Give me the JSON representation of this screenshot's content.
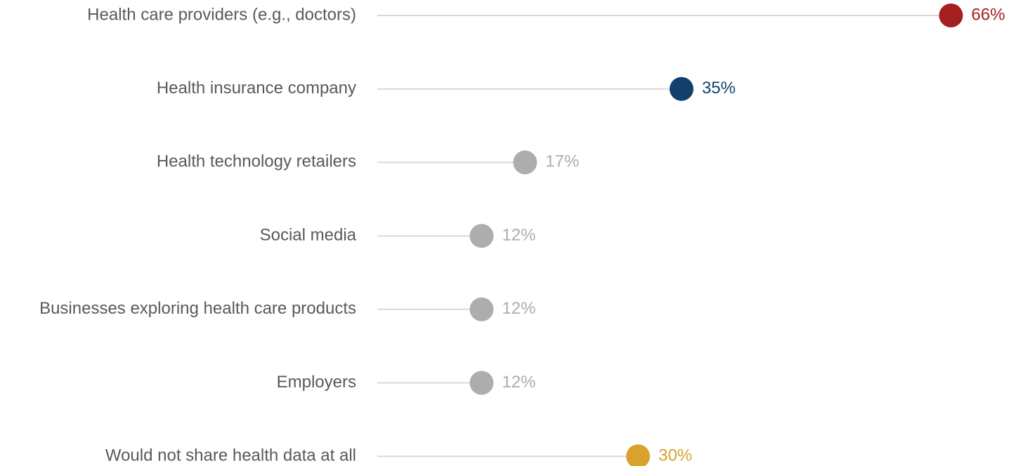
{
  "chart_data": {
    "type": "lollipop",
    "categories": [
      "Health care providers (e.g., doctors)",
      "Health insurance company",
      "Health technology retailers",
      "Social media",
      "Businesses exploring health care products",
      "Employers",
      "Would not share health data at all"
    ],
    "values": [
      66,
      35,
      17,
      12,
      12,
      12,
      30
    ],
    "value_labels": [
      "66%",
      "35%",
      "17%",
      "12%",
      "12%",
      "12%",
      "30%"
    ],
    "colors": [
      "#a4201f",
      "#12406e",
      "#aeacac",
      "#aeacac",
      "#aeacac",
      "#aeacac",
      "#d8a22c"
    ]
  }
}
